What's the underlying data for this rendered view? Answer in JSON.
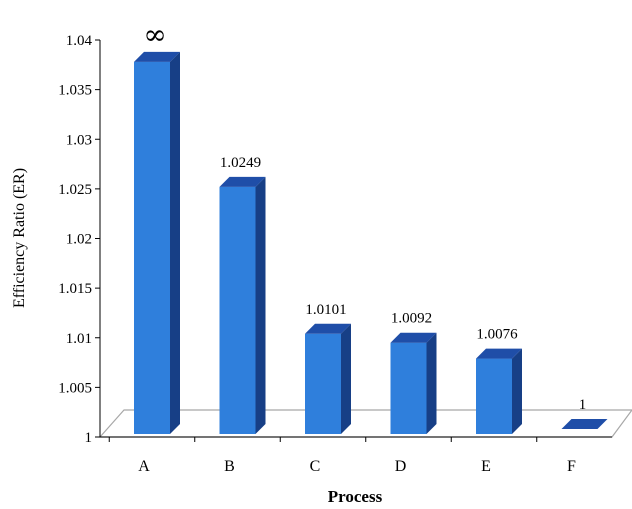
{
  "chart_data": {
    "type": "bar",
    "title": "",
    "xlabel": "Process",
    "ylabel": "Efficiency Ratio (ER)",
    "categories": [
      "A",
      "B",
      "C",
      "D",
      "E",
      "F"
    ],
    "values": [
      1.0375,
      1.0249,
      1.0101,
      1.0092,
      1.0076,
      1
    ],
    "data_labels": [
      "∞",
      "1.0249",
      "1.0101",
      "1.0092",
      "1.0076",
      "1"
    ],
    "ylim": [
      1,
      1.04
    ],
    "yticks": [
      1,
      1.005,
      1.01,
      1.015,
      1.02,
      1.025,
      1.03,
      1.035,
      1.04
    ],
    "ytick_labels": [
      "1",
      "1.005",
      "1.01",
      "1.015",
      "1.02",
      "1.025",
      "1.03",
      "1.035",
      "1.04"
    ],
    "grid": false,
    "legend": "none",
    "colors": {
      "front": "#2f7fdc",
      "side": "#173f86",
      "top": "#1f4ea8",
      "floor_fill": "#ffffff",
      "floor_stroke": "#a8a8a8",
      "axis": "#000000"
    }
  }
}
